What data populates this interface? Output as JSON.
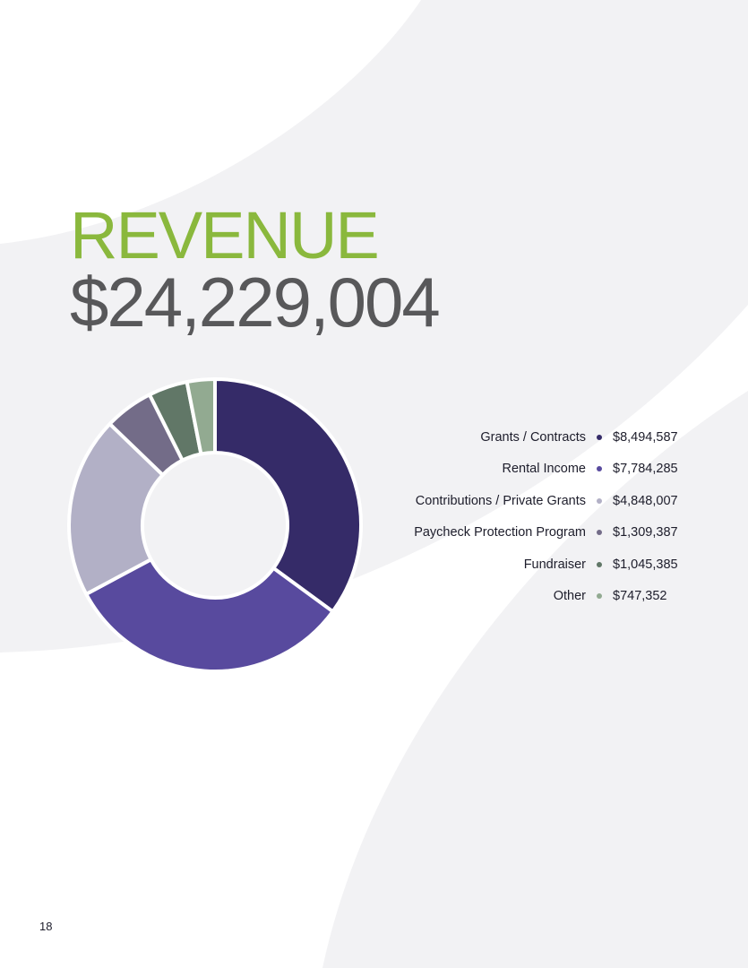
{
  "page": {
    "title": "REVENUE",
    "total": "$24,229,004",
    "page_number": "18"
  },
  "colors": {
    "accent_green": "#8ab83d",
    "total_gray": "#58585a",
    "background_band": "#f2f2f4"
  },
  "chart_data": {
    "type": "pie",
    "style": "donut",
    "title": "",
    "categories": [
      "Grants / Contracts",
      "Rental Income",
      "Contributions / Private Grants",
      "Paycheck Protection Program",
      "Fundraiser",
      "Other"
    ],
    "values": [
      8494587,
      7784285,
      4848007,
      1309387,
      1045385,
      747352
    ],
    "value_labels": [
      "$8,494,587",
      "$7,784,285",
      "$4,848,007",
      "$1,309,387",
      "$1,045,385",
      "$747,352"
    ],
    "colors": [
      "#352b68",
      "#584a9e",
      "#b2b0c6",
      "#736c88",
      "#617767",
      "#92aa91"
    ],
    "legend_position": "right"
  }
}
